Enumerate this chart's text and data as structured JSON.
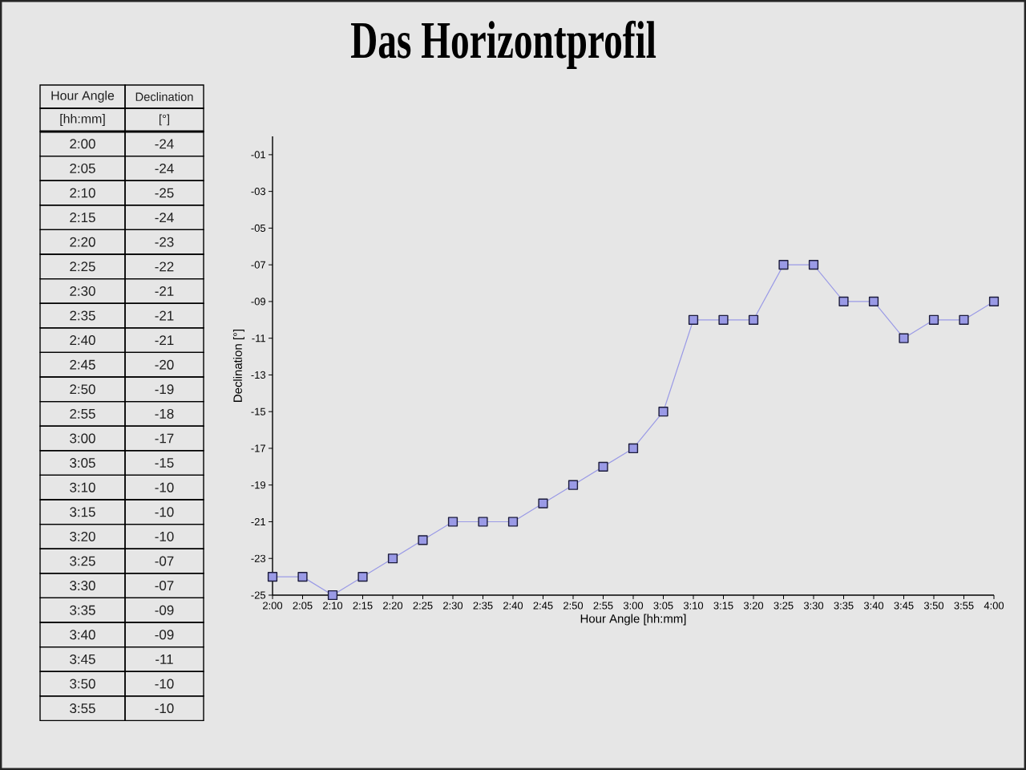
{
  "chart_data": {
    "type": "line",
    "title": "Das Horizontprofil",
    "xlabel": "Hour Angle [hh:mm]",
    "ylabel": "Declination [°]",
    "annotations": [
      "Hour Angle",
      "Declination",
      "[hh:mm]",
      "[°]",
      "2:00",
      "-24",
      "2:05",
      "-24",
      "2:10",
      "-25",
      "2:15",
      "-24",
      "2:20",
      "-23",
      "2:25",
      "-22",
      "2:30",
      "-21",
      "2:35",
      "-21",
      "2:40",
      "-21",
      "2:45",
      "-20",
      "2:50",
      "-19",
      "2:55",
      "-18",
      "3:00",
      "-17",
      "3:05",
      "-15",
      "3:10",
      "-10",
      "3:15",
      "-10",
      "3:20",
      "-10",
      "3:25",
      "-07",
      "3:30",
      "-07",
      "3:35",
      "-09",
      "3:40",
      "-09",
      "3:45",
      "-11",
      "3:50",
      "-10",
      "3:55",
      "-10"
    ],
    "categories": [
      "2:00",
      "2:05",
      "2:10",
      "2:15",
      "2:20",
      "2:25",
      "2:30",
      "2:35",
      "2:40",
      "2:45",
      "2:50",
      "2:55",
      "3:00",
      "3:05",
      "3:10",
      "3:15",
      "3:20",
      "3:25",
      "3:30",
      "3:35",
      "3:40",
      "3:45",
      "3:50",
      "3:55",
      "4:00"
    ],
    "values": [
      -24,
      -24,
      -25,
      -24,
      -23,
      -22,
      -21,
      -21,
      -21,
      -20,
      -19,
      -18,
      -17,
      -15,
      -10,
      -10,
      -10,
      -7,
      -7,
      -9,
      -9,
      -11,
      -10,
      -10,
      -9
    ],
    "color": "#9a9ae6",
    "marker": "square",
    "ylim": [
      -25,
      0
    ],
    "yticks": [
      {
        "value": -1,
        "label": "-01"
      },
      {
        "value": -3,
        "label": "-03"
      },
      {
        "value": -5,
        "label": "-05"
      },
      {
        "value": -7,
        "label": "-07"
      },
      {
        "value": -9,
        "label": "-09"
      },
      -11,
      -13,
      -15,
      -17,
      -19,
      -21,
      -23,
      -25
    ]
  }
}
